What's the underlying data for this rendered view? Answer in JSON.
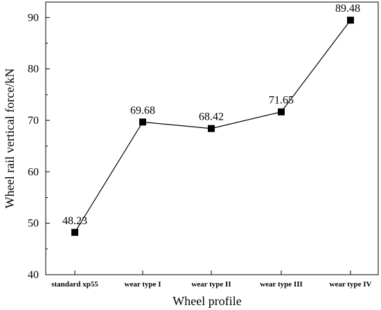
{
  "chart_data": {
    "type": "line",
    "categories": [
      "standard xp55",
      "wear type I",
      "wear type II",
      "wear type III",
      "wear type IV"
    ],
    "values": [
      48.23,
      69.68,
      68.42,
      71.65,
      89.48
    ],
    "data_labels": [
      "48.23",
      "69.68",
      "68.42",
      "71.65",
      "89.48"
    ],
    "xlabel": "Wheel profile",
    "ylabel": "Wheel rail vertical force/kN",
    "ylim": [
      40,
      93
    ],
    "yticks": [
      40,
      50,
      60,
      70,
      80,
      90
    ],
    "grid": false,
    "marker": "square",
    "line_color": "#000000"
  }
}
